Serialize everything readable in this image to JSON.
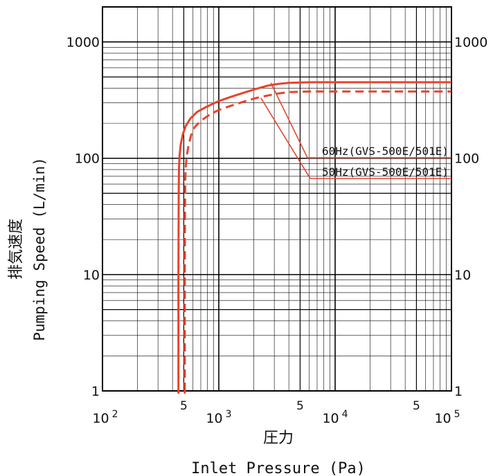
{
  "chart_data": {
    "type": "line",
    "title": "",
    "xlabel_jp": "圧力",
    "xlabel": "Inlet Pressure (Pa)",
    "ylabel_jp": "排気速度",
    "ylabel": "Pumping Speed (L/min)",
    "x_scale": "log",
    "y_scale": "log",
    "xlim": [
      100,
      100000
    ],
    "ylim": [
      1,
      2000
    ],
    "grid": true,
    "x_ticks": [
      {
        "value": 100,
        "base": "10",
        "exp": "2"
      },
      {
        "value": 1000,
        "base": "10",
        "exp": "3"
      },
      {
        "value": 10000,
        "base": "10",
        "exp": "4"
      },
      {
        "value": 100000,
        "base": "10",
        "exp": "5"
      }
    ],
    "x_minor_labels": [
      {
        "value": 500,
        "label": "5"
      },
      {
        "value": 5000,
        "label": "5"
      },
      {
        "value": 50000,
        "label": "5"
      }
    ],
    "y_ticks": [
      {
        "value": 1,
        "label": "1"
      },
      {
        "value": 10,
        "label": "10"
      },
      {
        "value": 100,
        "label": "100"
      },
      {
        "value": 1000,
        "label": "1000"
      }
    ],
    "series": [
      {
        "name": "60Hz(GVS-500E/501E)",
        "color": "#e8432b",
        "dash": "solid",
        "x": [
          450,
          450,
          452,
          455,
          460,
          470,
          490,
          520,
          570,
          650,
          800,
          1000,
          1300,
          1700,
          2100,
          2600,
          3200,
          4000,
          6000,
          10000,
          30000,
          100000
        ],
        "y": [
          1,
          10,
          50,
          80,
          105,
          130,
          160,
          190,
          220,
          250,
          280,
          310,
          340,
          370,
          395,
          420,
          435,
          445,
          450,
          450,
          450,
          450
        ]
      },
      {
        "name": "50Hz(GVS-500E/501E)",
        "color": "#e8432b",
        "dash": "dashed",
        "x": [
          510,
          510,
          512,
          515,
          520,
          530,
          550,
          580,
          620,
          700,
          850,
          1000,
          1300,
          1700,
          2100,
          2600,
          3200,
          4000,
          6000,
          10000,
          30000,
          100000
        ],
        "y": [
          1,
          10,
          40,
          65,
          85,
          105,
          130,
          160,
          185,
          210,
          240,
          260,
          285,
          310,
          330,
          345,
          360,
          370,
          375,
          375,
          375,
          375
        ]
      }
    ],
    "legend": [
      {
        "label": "60Hz(GVS-500E/501E)",
        "anchor_x": 2800,
        "anchor_y": 445
      },
      {
        "label": "50Hz(GVS-500E/501E)",
        "anchor_x": 2300,
        "anchor_y": 330
      }
    ]
  }
}
